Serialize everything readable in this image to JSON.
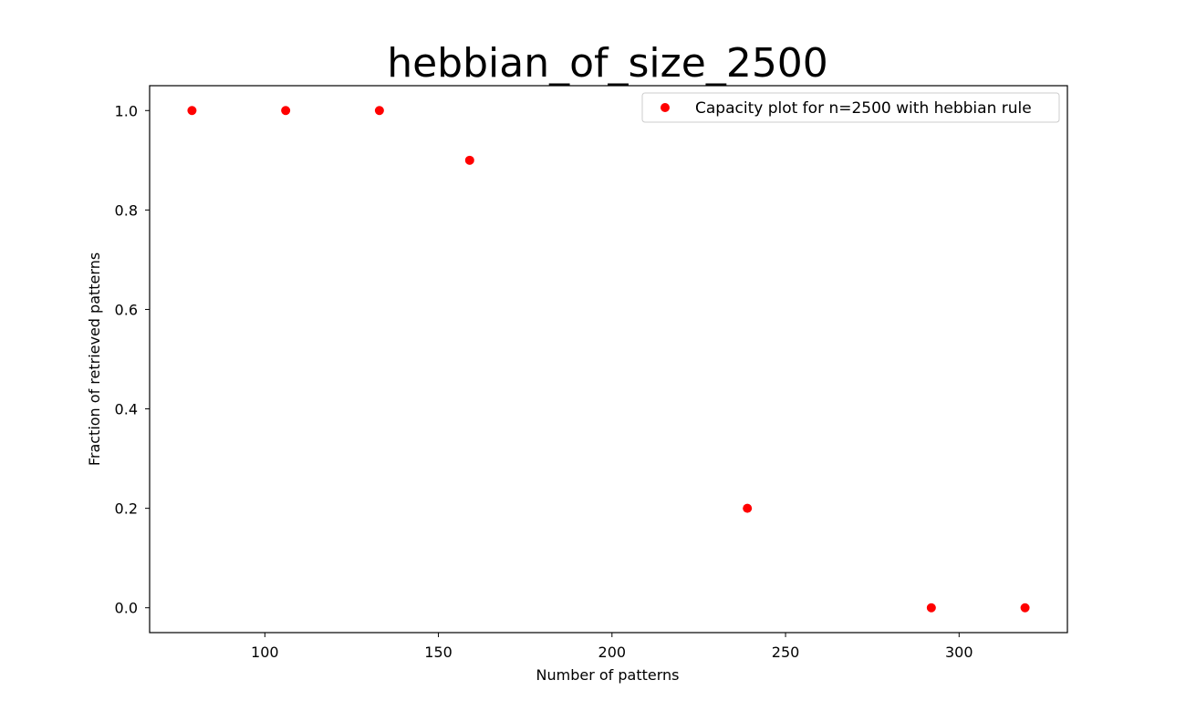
{
  "chart_data": {
    "type": "scatter",
    "title": "hebbian_of_size_2500",
    "xlabel": "Number of patterns",
    "ylabel": "Fraction of retrieved patterns",
    "xlim": [
      66.8,
      331.2
    ],
    "ylim": [
      -0.05,
      1.05
    ],
    "xticks": [
      100,
      150,
      200,
      250,
      300
    ],
    "xtick_labels": [
      "100",
      "150",
      "200",
      "250",
      "300"
    ],
    "yticks": [
      0.0,
      0.2,
      0.4,
      0.6,
      0.8,
      1.0
    ],
    "ytick_labels": [
      "0.0",
      "0.2",
      "0.4",
      "0.6",
      "0.8",
      "1.0"
    ],
    "grid": false,
    "legend_position": "top-right",
    "series": [
      {
        "name": "Capacity plot for n=2500 with hebbian rule",
        "color": "#ff0000",
        "marker": "circle",
        "x": [
          79,
          106,
          133,
          159,
          239,
          292,
          319
        ],
        "y": [
          1.0,
          1.0,
          1.0,
          0.9,
          0.2,
          0.0,
          0.0
        ]
      }
    ]
  }
}
